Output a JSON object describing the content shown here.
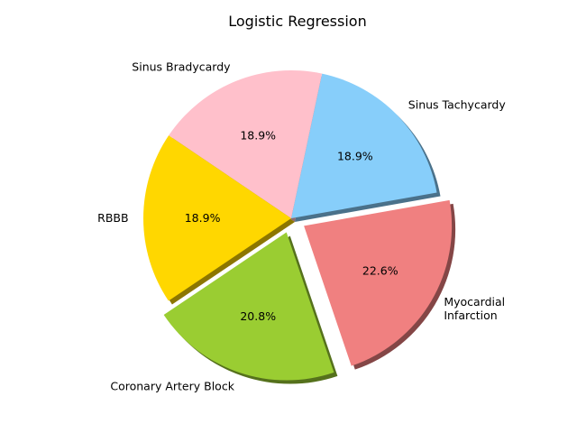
{
  "chart_data": {
    "type": "pie",
    "title": "Logistic Regression",
    "shadow": true,
    "slices": [
      {
        "label": "Sinus Tachycardy",
        "value": 18.9,
        "pct_label": "18.9%",
        "color": "#87cefa",
        "exploded": false
      },
      {
        "label": "Sinus Bradycardy",
        "value": 18.9,
        "pct_label": "18.9%",
        "color": "#ffc0cb",
        "exploded": false
      },
      {
        "label": "RBBB",
        "value": 18.9,
        "pct_label": "18.9%",
        "color": "#ffd700",
        "exploded": false
      },
      {
        "label": "Coronary Artery Block",
        "value": 20.8,
        "pct_label": "20.8%",
        "color": "#9acd32",
        "exploded": true
      },
      {
        "label": "Myocardial\nInfarction",
        "value": 22.6,
        "pct_label": "22.6%",
        "color": "#f08080",
        "exploded": true
      }
    ]
  }
}
